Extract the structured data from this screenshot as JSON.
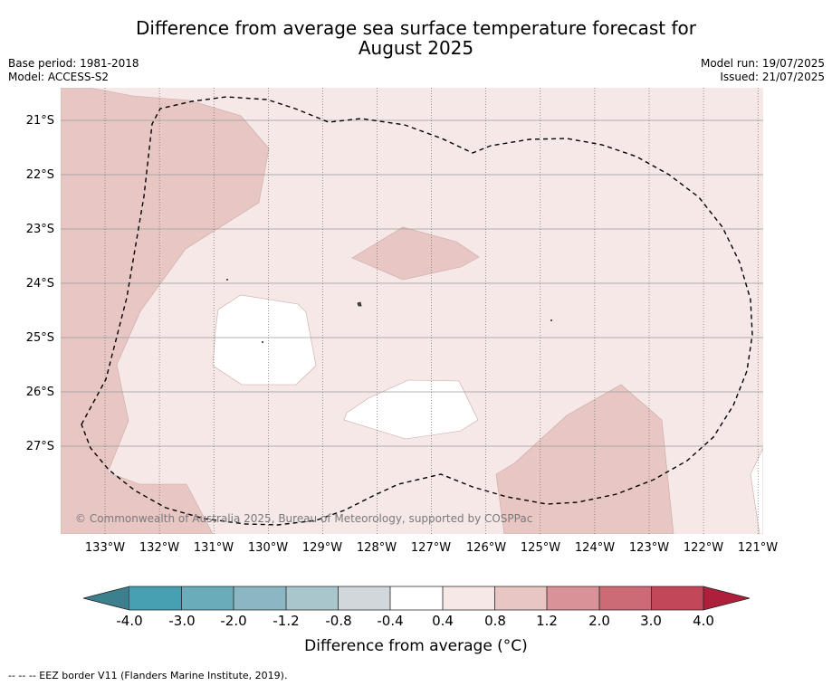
{
  "title": {
    "line1": "Difference from average sea surface temperature forecast for",
    "line2": "August 2025"
  },
  "meta": {
    "base_period": "Base period: 1981-2018",
    "model": "Model: ACCESS-S2",
    "model_run": "Model run: 19/07/2025",
    "issued": "Issued: 21/07/2025"
  },
  "map": {
    "lat_labels": [
      "21°S",
      "22°S",
      "23°S",
      "24°S",
      "25°S",
      "26°S",
      "27°S"
    ],
    "lon_labels": [
      "133°W",
      "132°W",
      "131°W",
      "130°W",
      "129°W",
      "128°W",
      "127°W",
      "126°W",
      "125°W",
      "124°W",
      "123°W",
      "122°W",
      "121°W"
    ],
    "copyright": "© Commonwealth of Australia 2025, Bureau of Meteorology, supported by COSPPac",
    "fill_colors": {
      "band_0_4_to_0_8": "#f5e8e7",
      "band_0_8_to_1_2": "#e8c6c3",
      "band_minus_0_4_to_0_4": "#ffffff"
    }
  },
  "colorbar": {
    "title": "Difference from average (°C)",
    "ticks": [
      "-4.0",
      "-3.0",
      "-2.0",
      "-1.2",
      "-0.8",
      "-0.4",
      "0.4",
      "0.8",
      "1.2",
      "2.0",
      "3.0",
      "4.0"
    ],
    "colors": [
      "#3c808d",
      "#46a0b1",
      "#6bacbb",
      "#8bb7c3",
      "#a8c6cb",
      "#d1d7da",
      "#ffffff",
      "#f5e8e7",
      "#e8c6c3",
      "#da9299",
      "#cc6a76",
      "#c24758",
      "#ae1f3c"
    ]
  },
  "footnote": "-- -- -- EEZ border V11 (Flanders Marine Institute, 2019)."
}
